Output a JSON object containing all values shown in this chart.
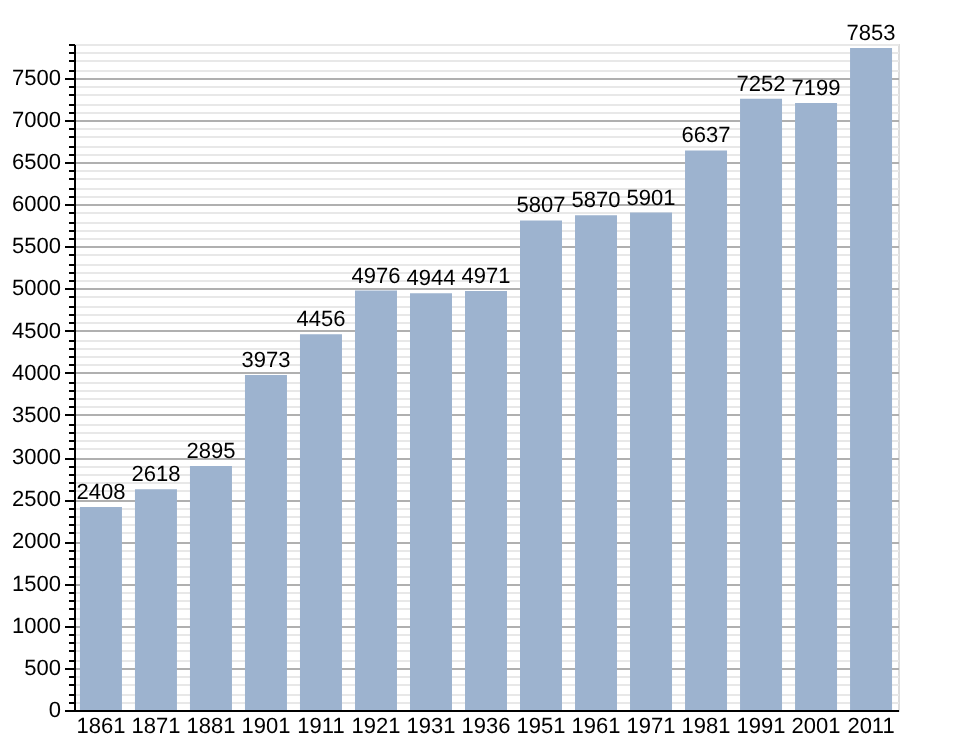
{
  "chart_data": {
    "type": "bar",
    "categories": [
      "1861",
      "1871",
      "1881",
      "1901",
      "1911",
      "1921",
      "1931",
      "1936",
      "1951",
      "1961",
      "1971",
      "1981",
      "1991",
      "2001",
      "2011"
    ],
    "values": [
      2408,
      2618,
      2895,
      3973,
      4456,
      4976,
      4944,
      4971,
      5807,
      5870,
      5901,
      6637,
      7252,
      7199,
      7853
    ],
    "color": "#9db3cf",
    "data_labels": true,
    "grid": true,
    "ylim": [
      0,
      7900
    ],
    "yticks": [
      0,
      {
        "value": 100,
        "label": null
      },
      {
        "value": 200,
        "label": null
      },
      {
        "value": 300,
        "label": null
      },
      {
        "value": 400,
        "label": null
      },
      500,
      {
        "value": 600,
        "label": null
      },
      {
        "value": 700,
        "label": null
      },
      {
        "value": 800,
        "label": null
      },
      {
        "value": 900,
        "label": null
      },
      1000,
      {
        "value": 1100,
        "label": null
      },
      {
        "value": 1200,
        "label": null
      },
      {
        "value": 1300,
        "label": null
      },
      {
        "value": 1400,
        "label": null
      },
      1500,
      {
        "value": 1600,
        "label": null
      },
      {
        "value": 1700,
        "label": null
      },
      {
        "value": 1800,
        "label": null
      },
      {
        "value": 1900,
        "label": null
      },
      2000,
      {
        "value": 2100,
        "label": null
      },
      {
        "value": 2200,
        "label": null
      },
      {
        "value": 2300,
        "label": null
      },
      {
        "value": 2400,
        "label": null
      },
      2500,
      {
        "value": 2600,
        "label": null
      },
      {
        "value": 2700,
        "label": null
      },
      {
        "value": 2800,
        "label": null
      },
      {
        "value": 2900,
        "label": null
      },
      3000,
      {
        "value": 3100,
        "label": null
      },
      {
        "value": 3200,
        "label": null
      },
      {
        "value": 3300,
        "label": null
      },
      {
        "value": 3400,
        "label": null
      },
      3500,
      {
        "value": 3600,
        "label": null
      },
      {
        "value": 3700,
        "label": null
      },
      {
        "value": 3800,
        "label": null
      },
      {
        "value": 3900,
        "label": null
      },
      4000,
      {
        "value": 4100,
        "label": null
      },
      {
        "value": 4200,
        "label": null
      },
      {
        "value": 4300,
        "label": null
      },
      {
        "value": 4400,
        "label": null
      },
      4500,
      {
        "value": 4600,
        "label": null
      },
      {
        "value": 4700,
        "label": null
      },
      {
        "value": 4800,
        "label": null
      },
      {
        "value": 4900,
        "label": null
      },
      5000,
      {
        "value": 5100,
        "label": null
      },
      {
        "value": 5200,
        "label": null
      },
      {
        "value": 5300,
        "label": null
      },
      {
        "value": 5400,
        "label": null
      },
      5500,
      {
        "value": 5600,
        "label": null
      },
      {
        "value": 5700,
        "label": null
      },
      {
        "value": 5800,
        "label": null
      },
      {
        "value": 5900,
        "label": null
      },
      6000,
      {
        "value": 6100,
        "label": null
      },
      {
        "value": 6200,
        "label": null
      },
      {
        "value": 6300,
        "label": null
      },
      {
        "value": 6400,
        "label": null
      },
      6500,
      {
        "value": 6600,
        "label": null
      },
      {
        "value": 6700,
        "label": null
      },
      {
        "value": 6800,
        "label": null
      },
      {
        "value": 6900,
        "label": null
      },
      7000,
      {
        "value": 7100,
        "label": null
      },
      {
        "value": 7200,
        "label": null
      },
      {
        "value": 7300,
        "label": null
      },
      {
        "value": 7400,
        "label": null
      },
      7500,
      {
        "value": 7600,
        "label": null
      },
      {
        "value": 7700,
        "label": null
      },
      {
        "value": 7800,
        "label": null
      },
      {
        "value": 7900,
        "label": null
      }
    ]
  }
}
